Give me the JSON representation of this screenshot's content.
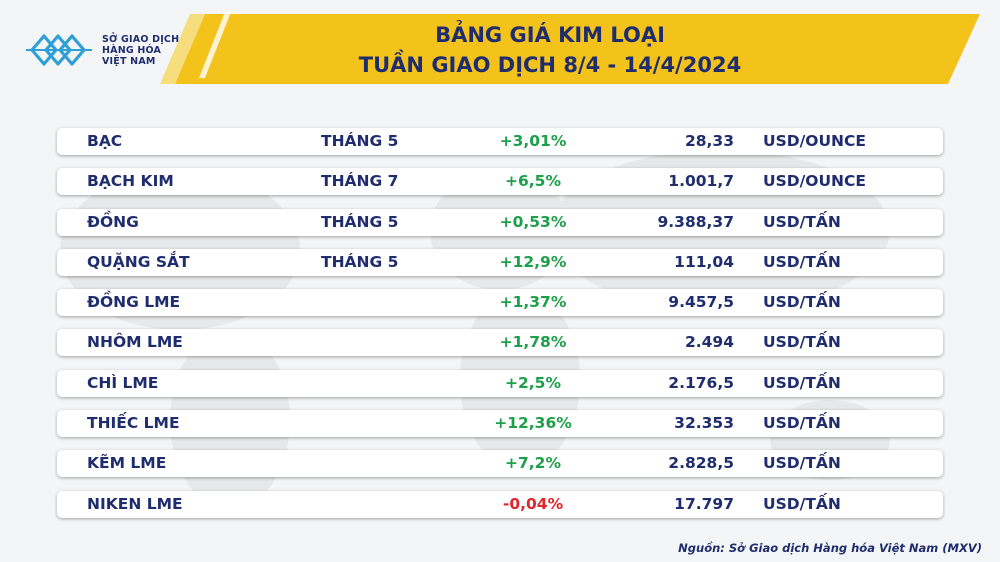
{
  "logo": {
    "line1": "SỞ GIAO DỊCH",
    "line2": "HÀNG HÓA",
    "line3": "VIỆT NAM"
  },
  "title": {
    "line1": "BẢNG GIÁ KIM LOẠI",
    "line2": "TUẦN GIAO DỊCH 8/4 - 14/4/2024"
  },
  "rows": [
    {
      "name": "BẠC",
      "month": "THÁNG 5",
      "change": "+3,01%",
      "direction": "up",
      "price": "28,33",
      "unit": "USD/OUNCE"
    },
    {
      "name": "BẠCH KIM",
      "month": "THÁNG 7",
      "change": "+6,5%",
      "direction": "up",
      "price": "1.001,7",
      "unit": "USD/OUNCE"
    },
    {
      "name": "ĐỒNG",
      "month": "THÁNG 5",
      "change": "+0,53%",
      "direction": "up",
      "price": "9.388,37",
      "unit": "USD/TẤN"
    },
    {
      "name": "QUẶNG SẮT",
      "month": "THÁNG 5",
      "change": "+12,9%",
      "direction": "up",
      "price": "111,04",
      "unit": "USD/TẤN"
    },
    {
      "name": "ĐỒNG LME",
      "month": "",
      "change": "+1,37%",
      "direction": "up",
      "price": "9.457,5",
      "unit": "USD/TẤN"
    },
    {
      "name": "NHÔM LME",
      "month": "",
      "change": "+1,78%",
      "direction": "up",
      "price": "2.494",
      "unit": "USD/TẤN"
    },
    {
      "name": "CHÌ LME",
      "month": "",
      "change": "+2,5%",
      "direction": "up",
      "price": "2.176,5",
      "unit": "USD/TẤN"
    },
    {
      "name": "THIẾC LME",
      "month": "",
      "change": "+12,36%",
      "direction": "up",
      "price": "32.353",
      "unit": "USD/TẤN"
    },
    {
      "name": "KẼM LME",
      "month": "",
      "change": "+7,2%",
      "direction": "up",
      "price": "2.828,5",
      "unit": "USD/TẤN"
    },
    {
      "name": "NIKEN LME",
      "month": "",
      "change": "-0,04%",
      "direction": "down",
      "price": "17.797",
      "unit": "USD/TẤN"
    }
  ],
  "source": "Nguồn: Sở Giao dịch Hàng hóa Việt Nam (MXV)",
  "colors": {
    "header_yellow": "#f3c21b",
    "text_navy": "#1f2d6e",
    "positive_green": "#1ea04a",
    "negative_red": "#e0252b",
    "logo_blue": "#2f9fd6"
  }
}
